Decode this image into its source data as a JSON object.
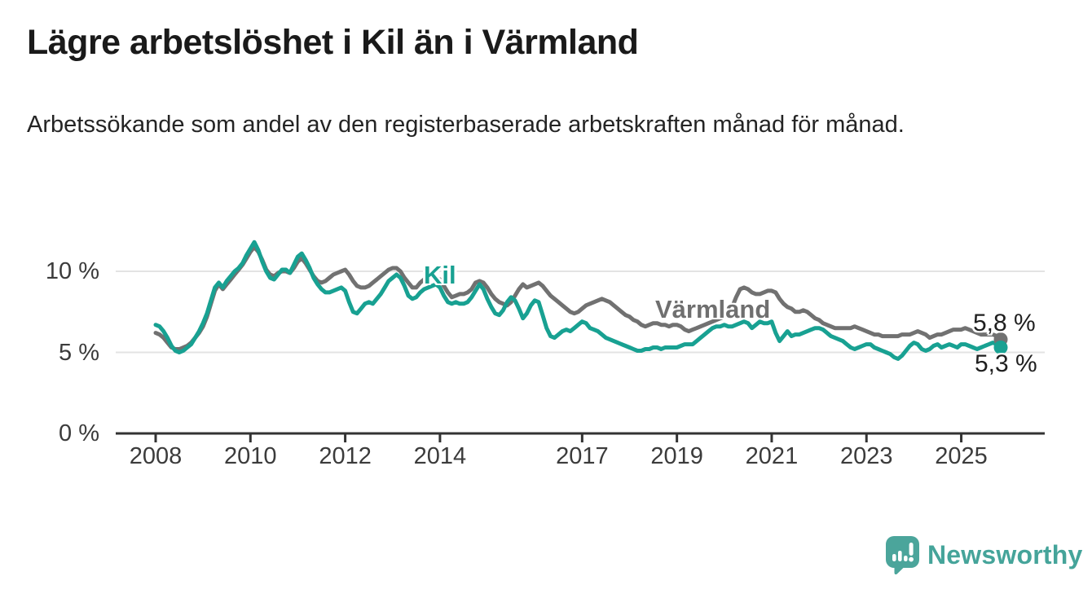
{
  "title": "Lägre arbetslöshet i Kil än i Värmland",
  "subtitle": "Arbetssökande som andel av den registerbaserade arbetskraften månad för månad.",
  "branding": {
    "logo_text": "Newsworthy",
    "logo_color": "#45a49a",
    "icon": "newsworthy-speech-bubble-bar-chart-icon"
  },
  "colors": {
    "kil_line": "#18a192",
    "varmland_line": "#717171",
    "grid": "#e3e3e3",
    "axis": "#333333",
    "text_dark": "#1a1a1a"
  },
  "chart_data": {
    "type": "line",
    "title": "Lägre arbetslöshet i Kil än i Värmland",
    "x_start": "2008-01",
    "x_end": "2025-11",
    "x_frequency": "monthly",
    "grid": "horizontal",
    "legend_position": "inline-labels",
    "ylim": [
      0,
      12.3
    ],
    "y_ticks": [
      {
        "label": "0 %",
        "value": 0
      },
      {
        "label": "5 %",
        "value": 5
      },
      {
        "label": "10 %",
        "value": 10
      }
    ],
    "x_ticks": [
      {
        "label": "2008",
        "year": 2008
      },
      {
        "label": "2010",
        "year": 2010
      },
      {
        "label": "2012",
        "year": 2012
      },
      {
        "label": "2014",
        "year": 2014
      },
      {
        "label": "2017",
        "year": 2017
      },
      {
        "label": "2019",
        "year": 2019
      },
      {
        "label": "2021",
        "year": 2021
      },
      {
        "label": "2023",
        "year": 2023
      },
      {
        "label": "2025",
        "year": 2025
      }
    ],
    "series": [
      {
        "name": "Värmland",
        "color": "#717171",
        "end_label": "5,8 %",
        "end_value": 5.8,
        "values": [
          6.2,
          6.1,
          5.9,
          5.6,
          5.3,
          5.2,
          5.2,
          5.3,
          5.4,
          5.6,
          5.9,
          6.2,
          6.6,
          7.2,
          8.0,
          8.8,
          9.2,
          8.9,
          9.2,
          9.5,
          9.8,
          10.1,
          10.4,
          10.8,
          11.2,
          11.5,
          11.2,
          10.7,
          10.1,
          9.8,
          9.7,
          9.9,
          10.0,
          10.0,
          9.9,
          10.2,
          10.6,
          10.8,
          10.5,
          10.1,
          9.7,
          9.4,
          9.3,
          9.4,
          9.6,
          9.8,
          9.9,
          10.0,
          10.1,
          9.8,
          9.4,
          9.1,
          9.0,
          9.0,
          9.1,
          9.3,
          9.5,
          9.7,
          9.9,
          10.1,
          10.2,
          10.2,
          10.0,
          9.6,
          9.3,
          9.0,
          9.0,
          9.3,
          9.5,
          9.6,
          9.6,
          9.6,
          9.5,
          9.1,
          8.7,
          8.4,
          8.5,
          8.6,
          8.6,
          8.7,
          8.9,
          9.3,
          9.4,
          9.3,
          9.0,
          8.6,
          8.3,
          8.1,
          8.0,
          7.9,
          8.1,
          8.5,
          8.9,
          9.2,
          9.0,
          9.1,
          9.2,
          9.3,
          9.1,
          8.8,
          8.5,
          8.3,
          8.1,
          7.9,
          7.7,
          7.5,
          7.4,
          7.5,
          7.7,
          7.9,
          8.0,
          8.1,
          8.2,
          8.3,
          8.2,
          8.1,
          7.9,
          7.7,
          7.5,
          7.3,
          7.2,
          7.0,
          6.9,
          6.7,
          6.6,
          6.7,
          6.8,
          6.8,
          6.7,
          6.7,
          6.6,
          6.7,
          6.7,
          6.6,
          6.4,
          6.3,
          6.4,
          6.5,
          6.6,
          6.7,
          6.8,
          6.9,
          7.0,
          7.1,
          7.2,
          7.4,
          7.8,
          8.4,
          8.9,
          9.0,
          8.9,
          8.7,
          8.6,
          8.6,
          8.7,
          8.8,
          8.8,
          8.7,
          8.3,
          8.0,
          7.8,
          7.7,
          7.5,
          7.5,
          7.6,
          7.5,
          7.3,
          7.1,
          7.0,
          6.8,
          6.7,
          6.6,
          6.5,
          6.5,
          6.5,
          6.5,
          6.5,
          6.6,
          6.5,
          6.4,
          6.3,
          6.2,
          6.1,
          6.1,
          6.0,
          6.0,
          6.0,
          6.0,
          6.0,
          6.1,
          6.1,
          6.1,
          6.2,
          6.3,
          6.2,
          6.1,
          5.9,
          6.0,
          6.1,
          6.1,
          6.2,
          6.3,
          6.4,
          6.4,
          6.4,
          6.5,
          6.4,
          6.3,
          6.2,
          6.1,
          6.1,
          6.1,
          6.1,
          6.0,
          5.8
        ]
      },
      {
        "name": "Kil",
        "color": "#18a192",
        "end_label": "5,3 %",
        "end_value": 5.3,
        "values": [
          6.7,
          6.6,
          6.3,
          5.9,
          5.4,
          5.1,
          5.0,
          5.1,
          5.3,
          5.5,
          5.9,
          6.3,
          6.8,
          7.4,
          8.2,
          9.0,
          9.3,
          9.0,
          9.4,
          9.7,
          10.0,
          10.2,
          10.5,
          11.0,
          11.4,
          11.8,
          11.3,
          10.6,
          10.0,
          9.6,
          9.5,
          9.8,
          10.1,
          10.1,
          9.9,
          10.4,
          10.9,
          11.1,
          10.7,
          10.2,
          9.6,
          9.2,
          8.9,
          8.7,
          8.7,
          8.8,
          8.9,
          9.0,
          8.8,
          8.1,
          7.5,
          7.4,
          7.7,
          8.0,
          8.1,
          8.0,
          8.3,
          8.6,
          9.0,
          9.4,
          9.6,
          9.8,
          9.6,
          9.1,
          8.5,
          8.3,
          8.4,
          8.7,
          8.9,
          9.0,
          9.1,
          9.2,
          9.0,
          8.5,
          8.1,
          8.0,
          8.1,
          8.0,
          8.0,
          8.1,
          8.4,
          8.8,
          9.2,
          8.9,
          8.3,
          7.8,
          7.4,
          7.3,
          7.6,
          8.1,
          8.4,
          8.2,
          7.7,
          7.1,
          7.4,
          7.9,
          8.2,
          8.1,
          7.3,
          6.5,
          6.0,
          5.9,
          6.1,
          6.3,
          6.4,
          6.3,
          6.5,
          6.7,
          6.9,
          6.8,
          6.5,
          6.4,
          6.3,
          6.1,
          5.9,
          5.8,
          5.7,
          5.6,
          5.5,
          5.4,
          5.3,
          5.2,
          5.1,
          5.1,
          5.2,
          5.2,
          5.3,
          5.3,
          5.2,
          5.3,
          5.3,
          5.3,
          5.3,
          5.4,
          5.5,
          5.5,
          5.5,
          5.7,
          5.9,
          6.1,
          6.3,
          6.5,
          6.6,
          6.6,
          6.7,
          6.6,
          6.6,
          6.7,
          6.8,
          6.9,
          6.8,
          6.5,
          6.7,
          6.9,
          6.8,
          6.8,
          6.9,
          6.2,
          5.7,
          6.0,
          6.3,
          6.0,
          6.1,
          6.1,
          6.2,
          6.3,
          6.4,
          6.5,
          6.5,
          6.4,
          6.2,
          6.0,
          5.9,
          5.8,
          5.7,
          5.5,
          5.3,
          5.2,
          5.3,
          5.4,
          5.5,
          5.5,
          5.3,
          5.2,
          5.1,
          5.0,
          4.9,
          4.7,
          4.6,
          4.8,
          5.1,
          5.4,
          5.6,
          5.5,
          5.2,
          5.1,
          5.2,
          5.4,
          5.5,
          5.3,
          5.4,
          5.5,
          5.4,
          5.3,
          5.5,
          5.5,
          5.4,
          5.3,
          5.2,
          5.3,
          5.4,
          5.5,
          5.6,
          5.5,
          5.3
        ]
      }
    ]
  }
}
